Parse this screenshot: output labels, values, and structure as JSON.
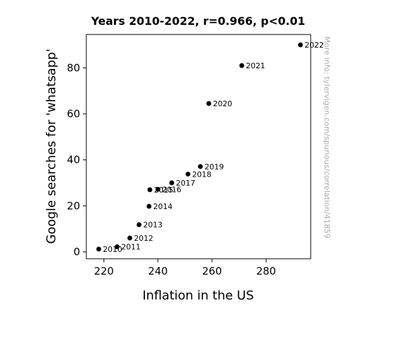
{
  "chart_data": {
    "type": "scatter",
    "title": "Years 2010-2022, r=0.966, p<0.01",
    "xlabel": "Inflation in the US",
    "ylabel": "Google searches for 'whatsapp'",
    "xlim": [
      213.5,
      296.5
    ],
    "ylim": [
      -3,
      94.5
    ],
    "xticks": [
      220,
      240,
      260,
      280
    ],
    "yticks": [
      0,
      20,
      40,
      60,
      80
    ],
    "grid": false,
    "marker_color": "#000000",
    "points": [
      {
        "label": "2010",
        "x": 218.1,
        "y": 1.2
      },
      {
        "label": "2011",
        "x": 224.9,
        "y": 2.2
      },
      {
        "label": "2012",
        "x": 229.6,
        "y": 6.0
      },
      {
        "label": "2013",
        "x": 233.0,
        "y": 11.8
      },
      {
        "label": "2014",
        "x": 236.7,
        "y": 19.8
      },
      {
        "label": "2015",
        "x": 237.0,
        "y": 27.0
      },
      {
        "label": "2016",
        "x": 240.0,
        "y": 27.2
      },
      {
        "label": "2017",
        "x": 245.1,
        "y": 30.0
      },
      {
        "label": "2018",
        "x": 251.1,
        "y": 33.8
      },
      {
        "label": "2019",
        "x": 255.7,
        "y": 37.1
      },
      {
        "label": "2020",
        "x": 258.8,
        "y": 64.5
      },
      {
        "label": "2021",
        "x": 271.0,
        "y": 81.0
      },
      {
        "label": "2022",
        "x": 292.7,
        "y": 90.0
      }
    ]
  },
  "watermark": "More info: tylervigen.com/spurious/correlation/41859"
}
